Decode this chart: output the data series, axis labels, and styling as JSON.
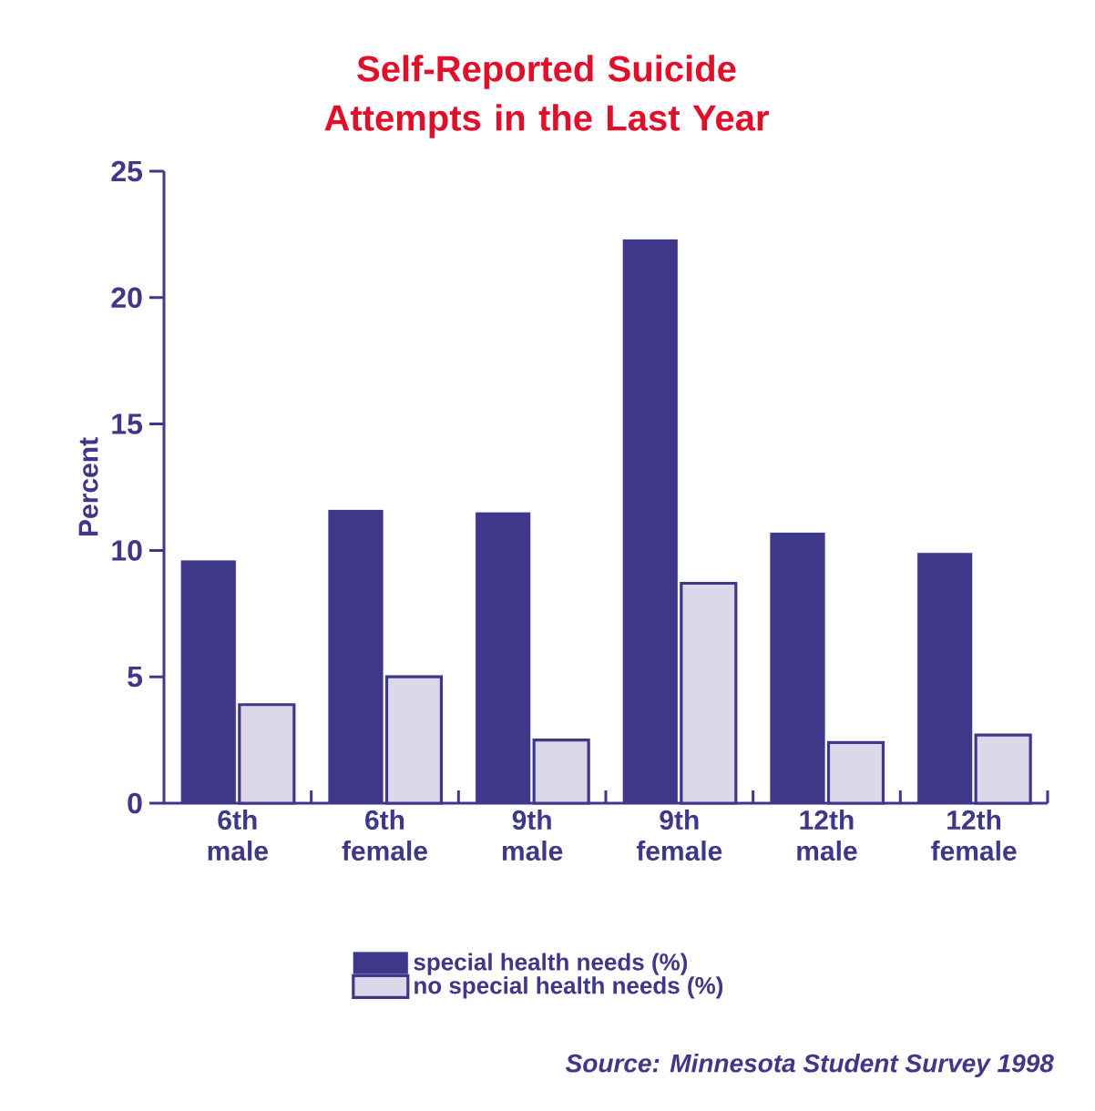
{
  "chart_data": {
    "type": "bar",
    "title": "Self-Reported Suicide Attempts in the Last Year",
    "ylabel": "Percent",
    "categories": [
      "6th male",
      "6th female",
      "9th male",
      "9th female",
      "12th male",
      "12th female"
    ],
    "series": [
      {
        "name": "special health needs (%)",
        "color": "#3f388a",
        "values": [
          9.6,
          11.6,
          11.5,
          22.3,
          10.7,
          9.9
        ]
      },
      {
        "name": "no special health needs (%)",
        "color": "#dcd8ea",
        "values": [
          3.9,
          5.0,
          2.5,
          8.7,
          2.4,
          2.7
        ]
      }
    ],
    "ylim": [
      0,
      25
    ],
    "yticks": [
      0,
      5,
      10,
      15,
      20,
      25
    ],
    "grid": false,
    "legend": "bottom",
    "annotations": [
      "Source: Minnesota Student Survey 1998"
    ]
  }
}
